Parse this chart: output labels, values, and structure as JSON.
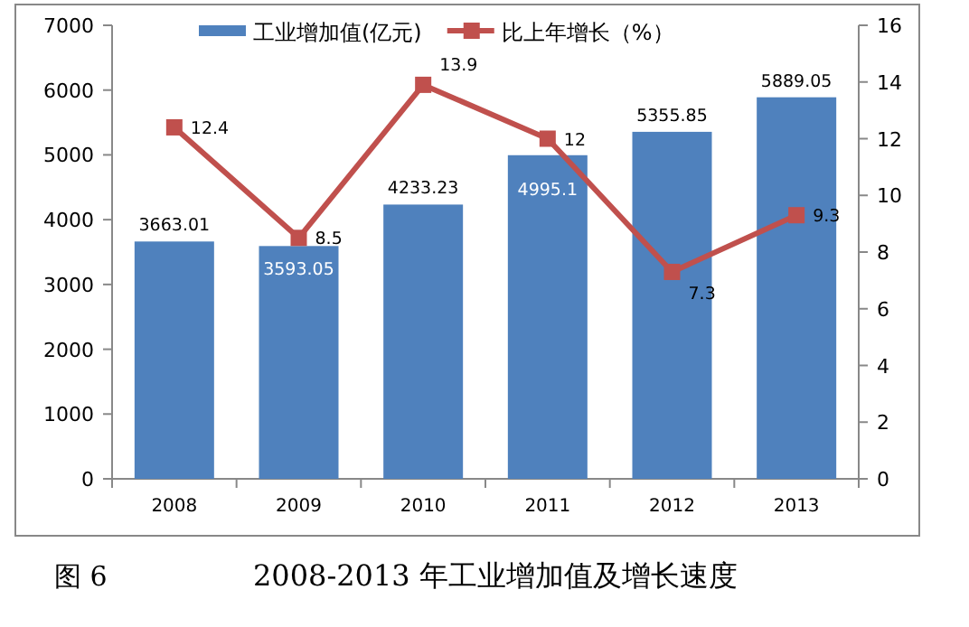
{
  "chart_data": {
    "type": "bar",
    "title": "2008-2013 年工业增加值及增长速度",
    "annotations": [
      "图 6"
    ],
    "categories": [
      "2008",
      "2009",
      "2010",
      "2011",
      "2012",
      "2013"
    ],
    "series": [
      {
        "name": "工业增加值(亿元)",
        "type": "bar",
        "color": "#4f81bd",
        "values": [
          3663.01,
          3593.05,
          4233.23,
          4995.1,
          5355.85,
          5889.05
        ]
      },
      {
        "name": "比上年增长（%）",
        "type": "line",
        "axis": "y2",
        "color": "#c0504d",
        "marker": "square",
        "values": [
          12.4,
          8.5,
          13.9,
          12,
          7.3,
          9.3
        ]
      }
    ],
    "ylim": [
      0,
      7000
    ],
    "yticks": [
      0,
      1000,
      2000,
      3000,
      4000,
      5000,
      6000,
      7000
    ],
    "y2lim": [
      0,
      16
    ],
    "y2ticks": [
      0,
      2,
      4,
      6,
      8,
      10,
      12,
      14,
      16
    ],
    "data_labels": true,
    "legend": "top",
    "grid": false
  }
}
